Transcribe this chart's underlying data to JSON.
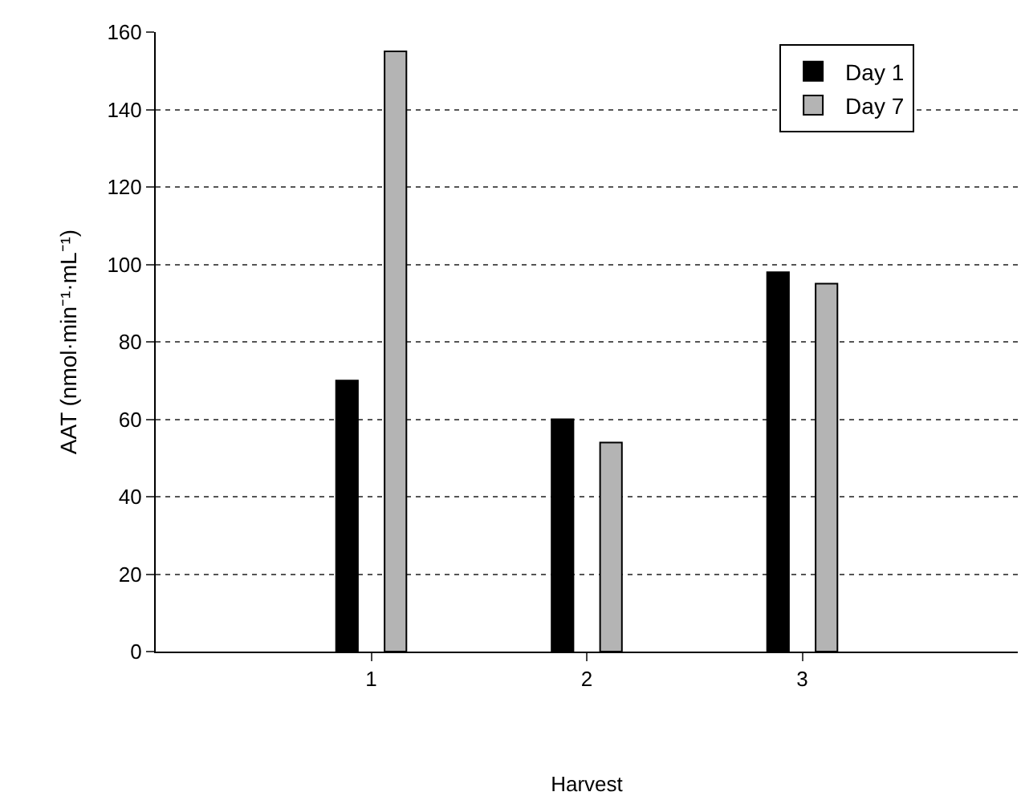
{
  "chart_data": {
    "type": "bar",
    "xlabel": "Harvest",
    "ylabel": "AAT (nmol·min⁻¹·mL⁻¹)",
    "categories": [
      "1",
      "2",
      "3"
    ],
    "series": [
      {
        "name": "Day 1",
        "color": "#000000",
        "values": [
          70,
          60,
          98
        ]
      },
      {
        "name": "Day 7",
        "color": "#b4b4b4",
        "values": [
          155,
          54,
          95
        ]
      }
    ],
    "ylim": [
      0,
      160
    ],
    "yticks": [
      0,
      20,
      40,
      60,
      80,
      100,
      120,
      140,
      160
    ],
    "grid": "y",
    "legend": "top right"
  }
}
